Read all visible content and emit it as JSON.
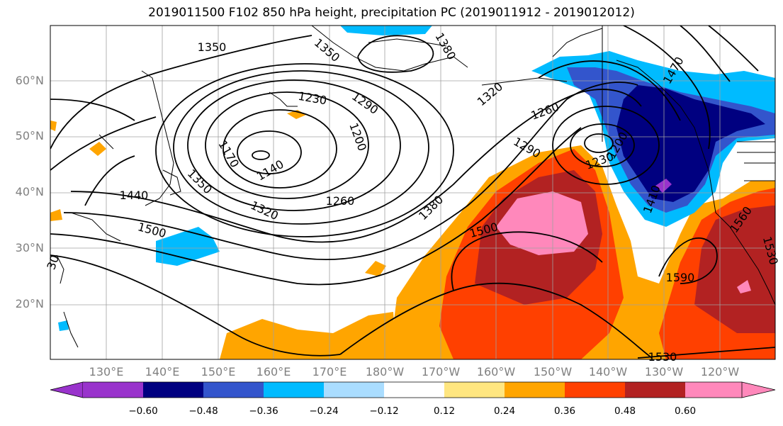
{
  "title": "2019011500 F102 850 hPa height, precipitation PC (2019011912 - 2019012012)",
  "lat_labels": [
    "60°N",
    "50°N",
    "40°N",
    "30°N",
    "20°N"
  ],
  "lon_labels": [
    "130°E",
    "140°E",
    "150°E",
    "160°E",
    "170°E",
    "180°W",
    "170°W",
    "160°W",
    "150°W",
    "140°W",
    "130°W",
    "120°W"
  ],
  "contour_labels": [
    "1350",
    "1350",
    "1380",
    "1230",
    "1290",
    "1200",
    "1170",
    "1140",
    "1350",
    "1440",
    "1500",
    "1320",
    "1260",
    "1380",
    "1320",
    "1260",
    "1290",
    "1200",
    "1230",
    "1470",
    "1410",
    "1500",
    "1590",
    "1560",
    "1530",
    "1530",
    "30"
  ],
  "colorbar": {
    "ticks": [
      "−0.60",
      "−0.48",
      "−0.36",
      "−0.24",
      "−0.12",
      "0.12",
      "0.24",
      "0.36",
      "0.48",
      "0.60"
    ],
    "colors": [
      "#9933cc",
      "#000080",
      "#3355cc",
      "#00bbff",
      "#aaddff",
      "#ffffff",
      "#ffe680",
      "#ffa500",
      "#ff4000",
      "#b22222",
      "#ff88bb",
      "#ff88bb"
    ],
    "underflow_color": "#9933cc",
    "overflow_color": "#ff88bb"
  },
  "colors": {
    "contour": "#000000",
    "coast": "#000000",
    "grid": "#a0a0a0",
    "tick_label": "#808080"
  }
}
